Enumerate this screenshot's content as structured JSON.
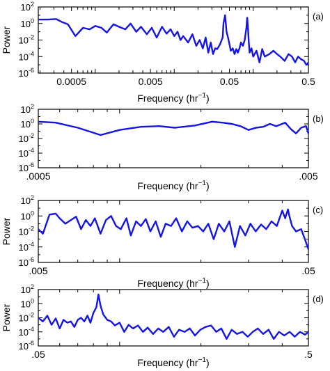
{
  "chart_data": [
    {
      "type": "line",
      "panel_label": "(a)",
      "xscale": "log",
      "yscale": "log",
      "xlim": [
        0.00019,
        0.5
      ],
      "ylim": [
        1e-06,
        100
      ],
      "xlabel": "Frequency (hr⁻¹)",
      "ylabel": "Power",
      "x_tick_labels": [
        "0.0005",
        "0.005",
        "0.05",
        "0.5"
      ],
      "x_tick_values": [
        0.0005,
        0.005,
        0.05,
        0.5
      ],
      "y_tick_exponents": [
        "2",
        "0",
        "-2",
        "-4",
        "-6"
      ],
      "grid": false,
      "x": [
        0.00019,
        0.00025,
        0.00032,
        0.00038,
        0.00045,
        0.00056,
        0.0007,
        0.00085,
        0.001,
        0.0012,
        0.0014,
        0.0017,
        0.002,
        0.0024,
        0.0028,
        0.0033,
        0.0038,
        0.0045,
        0.0052,
        0.006,
        0.007,
        0.008,
        0.009,
        0.01,
        0.011,
        0.012,
        0.013,
        0.015,
        0.017,
        0.019,
        0.021,
        0.023,
        0.025,
        0.027,
        0.029,
        0.031,
        0.033,
        0.035,
        0.038,
        0.041,
        0.042,
        0.044,
        0.046,
        0.048,
        0.05,
        0.052,
        0.055,
        0.058,
        0.061,
        0.064,
        0.067,
        0.07,
        0.074,
        0.078,
        0.082,
        0.084,
        0.086,
        0.088,
        0.09,
        0.095,
        0.1,
        0.11,
        0.12,
        0.13,
        0.14,
        0.16,
        0.18,
        0.2,
        0.22,
        0.25,
        0.28,
        0.31,
        0.34,
        0.37,
        0.4,
        0.44,
        0.47,
        0.5
      ],
      "values": [
        3,
        3,
        3.5,
        1.5,
        0.8,
        0.03,
        0.3,
        0.2,
        0.5,
        0.3,
        0.08,
        0.8,
        0.4,
        0.2,
        1,
        0.1,
        0.4,
        0.05,
        0.3,
        0.02,
        0.4,
        0.06,
        0.2,
        0.03,
        0.1,
        0.01,
        0.03,
        0.005,
        0.05,
        0.002,
        0.01,
        0.001,
        0.02,
        0.0003,
        0.005,
        0.0002,
        0.001,
        0.0008,
        0.003,
        0.02,
        1,
        10,
        0.1,
        0.02,
        0.003,
        0.0005,
        0.001,
        0.0002,
        0.0008,
        0.0003,
        0.001,
        0.005,
        0.002,
        0.01,
        0.3,
        5,
        0.2,
        0.005,
        0.0003,
        0.001,
        0.0001,
        0.0005,
        2e-05,
        0.0008,
        0.0001,
        0.0002,
        0.0005,
        0.0002,
        0.0001,
        3e-05,
        0.0002,
        0.0001,
        2e-05,
        0.0001,
        5e-05,
        3e-05,
        1e-05,
        2e-05
      ]
    },
    {
      "type": "line",
      "panel_label": "(b)",
      "xscale": "log",
      "yscale": "log",
      "xlim": [
        0.0005,
        0.005
      ],
      "ylim": [
        1e-06,
        100
      ],
      "xlabel": "Frequency (hr⁻¹)",
      "ylabel": "",
      "x_tick_labels": [
        ".0005",
        ".005"
      ],
      "x_tick_values": [
        0.0005,
        0.005
      ],
      "y_tick_exponents": [
        "2",
        "0",
        "-2",
        "-4",
        "-6"
      ],
      "grid": false,
      "x": [
        0.0005,
        0.00058,
        0.0007,
        0.00085,
        0.001,
        0.0012,
        0.0014,
        0.0016,
        0.0019,
        0.0022,
        0.0024,
        0.0026,
        0.0028,
        0.003,
        0.0032,
        0.0034,
        0.0036,
        0.0038,
        0.0041,
        0.0043,
        0.0045,
        0.0047,
        0.0049,
        0.005
      ],
      "values": [
        2,
        1.5,
        0.3,
        0.03,
        0.15,
        0.4,
        0.5,
        0.3,
        0.6,
        2,
        1.5,
        1,
        0.5,
        0.15,
        0.3,
        0.4,
        1,
        0.5,
        1.5,
        0.2,
        0.05,
        0.3,
        0.5,
        0.05
      ]
    },
    {
      "type": "line",
      "panel_label": "(c)",
      "xscale": "log",
      "yscale": "log",
      "xlim": [
        0.005,
        0.05
      ],
      "ylim": [
        1e-06,
        100
      ],
      "xlabel": "Frequency (hr⁻¹)",
      "ylabel": "Power",
      "x_tick_labels": [
        ".005",
        ".05"
      ],
      "x_tick_values": [
        0.005,
        0.05
      ],
      "y_tick_exponents": [
        "2",
        "0",
        "-2",
        "-4",
        "-6"
      ],
      "grid": false,
      "x": [
        0.005,
        0.0052,
        0.0055,
        0.0058,
        0.006,
        0.0063,
        0.0066,
        0.0069,
        0.0072,
        0.0075,
        0.0078,
        0.0081,
        0.0085,
        0.0089,
        0.0093,
        0.0097,
        0.0101,
        0.0106,
        0.011,
        0.0115,
        0.012,
        0.0125,
        0.013,
        0.0136,
        0.0142,
        0.0148,
        0.0155,
        0.0162,
        0.017,
        0.0178,
        0.0186,
        0.0195,
        0.0204,
        0.0213,
        0.0223,
        0.0233,
        0.0244,
        0.0255,
        0.0267,
        0.0279,
        0.0292,
        0.0305,
        0.0319,
        0.0334,
        0.0349,
        0.0365,
        0.0382,
        0.04,
        0.041,
        0.042,
        0.0425,
        0.0435,
        0.045,
        0.047,
        0.0485,
        0.05
      ],
      "values": [
        0.02,
        0.005,
        1.5,
        2,
        0.5,
        0.1,
        0.3,
        0.8,
        0.02,
        0.3,
        0.05,
        0.5,
        0.005,
        0.3,
        1,
        0.05,
        0.02,
        0.5,
        0.003,
        0.2,
        0.05,
        0.4,
        0.01,
        0.2,
        0.002,
        0.1,
        0.05,
        0.5,
        0.01,
        0.2,
        0.03,
        0.05,
        0.01,
        0.1,
        0.001,
        0.1,
        0.01,
        0.2,
        0.0001,
        0.05,
        0.003,
        0.1,
        0.01,
        0.08,
        0.02,
        0.2,
        0.05,
        5,
        0.5,
        7,
        1,
        0.05,
        0.01,
        0.02,
        0.001,
        5e-05
      ]
    },
    {
      "type": "line",
      "panel_label": "(d)",
      "xscale": "log",
      "yscale": "log",
      "xlim": [
        0.05,
        0.5
      ],
      "ylim": [
        1e-06,
        100
      ],
      "xlabel": "Frequency (hr⁻¹)",
      "ylabel": "Power",
      "x_tick_labels": [
        ".05",
        ".5"
      ],
      "x_tick_values": [
        0.05,
        0.5
      ],
      "y_tick_exponents": [
        "2",
        "0",
        "-2",
        "-4",
        "-6"
      ],
      "grid": false,
      "x": [
        0.05,
        0.052,
        0.054,
        0.056,
        0.058,
        0.06,
        0.062,
        0.064,
        0.066,
        0.068,
        0.07,
        0.072,
        0.074,
        0.076,
        0.078,
        0.08,
        0.082,
        0.0835,
        0.085,
        0.087,
        0.09,
        0.093,
        0.096,
        0.1,
        0.104,
        0.108,
        0.112,
        0.117,
        0.122,
        0.127,
        0.133,
        0.139,
        0.145,
        0.152,
        0.159,
        0.166,
        0.174,
        0.182,
        0.19,
        0.199,
        0.208,
        0.218,
        0.228,
        0.238,
        0.249,
        0.26,
        0.272,
        0.285,
        0.298,
        0.311,
        0.325,
        0.34,
        0.356,
        0.372,
        0.389,
        0.407,
        0.426,
        0.445,
        0.465,
        0.486,
        0.5
      ],
      "values": [
        0.01,
        0.003,
        0.02,
        0.001,
        0.008,
        0.0003,
        0.005,
        0.002,
        0.003,
        0.0005,
        0.005,
        0.01,
        0.003,
        0.02,
        0.002,
        0.05,
        0.3,
        20,
        0.5,
        0.03,
        0.005,
        0.003,
        0.0008,
        0.002,
        0.0001,
        0.001,
        0.0003,
        0.0008,
        0.0001,
        0.0004,
        5e-05,
        0.0003,
        0.0001,
        0.0005,
        2e-05,
        0.0002,
        0.0001,
        0.0003,
        3e-05,
        0.0002,
        0.0005,
        0.0008,
        0.0001,
        0.0003,
        1e-05,
        0.0002,
        5e-05,
        0.0001,
        2e-05,
        0.0001,
        0.0003,
        5e-05,
        0.0002,
        1e-05,
        0.0001,
        3e-05,
        0.0001,
        2e-05,
        0.0001,
        4e-05,
        0.0001
      ]
    }
  ]
}
